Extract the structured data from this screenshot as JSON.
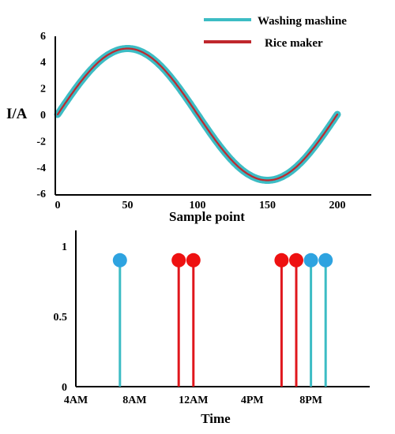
{
  "colors": {
    "washing": "#3cbcc4",
    "rice": "#c0272d",
    "stem_rice": "#e0171d",
    "marker_washing": "#2ea3e0",
    "marker_rice": "#ee1111"
  },
  "chart_data": [
    {
      "type": "line",
      "ylabel": "I/A",
      "xlabel": "Sample point",
      "xlim": [
        0,
        210
      ],
      "ylim": [
        -6,
        6
      ],
      "x_ticks": [
        "0",
        "50",
        "100",
        "150",
        "200"
      ],
      "y_ticks": [
        "6",
        "4",
        "2",
        "0",
        "-2",
        "-4",
        "-6"
      ],
      "legend_position": "top-right",
      "waveform": {
        "amplitude": 5,
        "period": 200,
        "x_start": 0,
        "x_end": 200
      },
      "series": [
        {
          "name": "Washing mashine"
        },
        {
          "name": "Rice maker"
        }
      ]
    },
    {
      "type": "stem",
      "xlabel": "Time",
      "ylim": [
        0,
        1.05
      ],
      "x_ticks": [
        "4AM",
        "8AM",
        "12AM",
        "4PM",
        "8PM"
      ],
      "y_ticks": [
        "1",
        "0.5",
        "0"
      ],
      "series": [
        {
          "name": "Washing mashine",
          "x": [
            "7AM",
            "8PM",
            "9PM"
          ],
          "values": [
            0.9,
            0.9,
            0.9
          ]
        },
        {
          "name": "Rice maker",
          "x": [
            "11AM",
            "12PM",
            "6PM",
            "7PM"
          ],
          "values": [
            0.9,
            0.9,
            0.9,
            0.9
          ]
        }
      ]
    }
  ]
}
